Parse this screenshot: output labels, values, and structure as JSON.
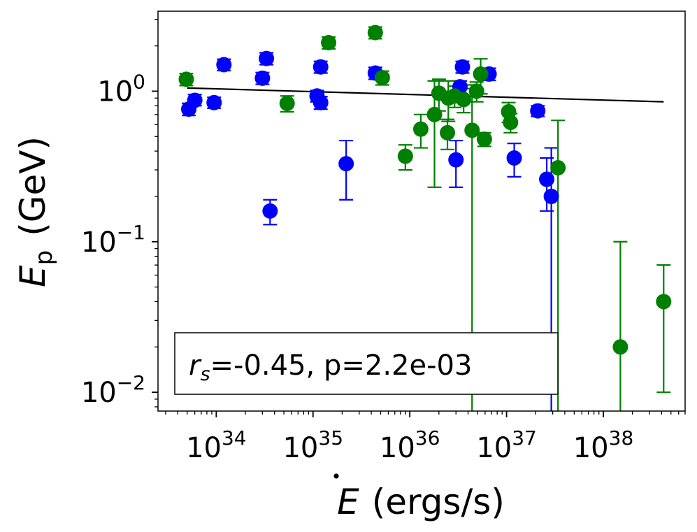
{
  "chart_data": {
    "type": "scatter",
    "x_scale": "log",
    "y_scale": "log",
    "xlim": [
      2.5e+33,
      7e+38
    ],
    "ylim": [
      0.0075,
      3.4
    ],
    "xlabel_symbol": "E",
    "xlabel_unit": "(ergs/s)",
    "ylabel_symbol": "E",
    "ylabel_subscript": "p",
    "ylabel_unit": "(GeV)",
    "x_ticks": [
      {
        "value": 1e+34,
        "base": "10",
        "exp": "34"
      },
      {
        "value": 1e+35,
        "base": "10",
        "exp": "35"
      },
      {
        "value": 1e+36,
        "base": "10",
        "exp": "36"
      },
      {
        "value": 1e+37,
        "base": "10",
        "exp": "37"
      },
      {
        "value": 1e+38,
        "base": "10",
        "exp": "38"
      }
    ],
    "y_ticks": [
      {
        "value": 1,
        "base": "10",
        "exp": "0"
      },
      {
        "value": 0.1,
        "base": "10",
        "exp": "−1"
      },
      {
        "value": 0.01,
        "base": "10",
        "exp": "−2"
      }
    ],
    "annotation": {
      "var": "r",
      "sub": "s",
      "text": "=-0.45, p=2.2e-03",
      "location": "lower-left"
    },
    "fit_line": {
      "x": [
        5e+33,
        4.2e+38
      ],
      "y": [
        1.05,
        0.85
      ],
      "color": "#000000"
    },
    "series": [
      {
        "name": "blue",
        "color": "#0000ff",
        "points": [
          {
            "x": 5.2e+33,
            "y": 0.76,
            "lo": 0.69,
            "hi": 0.83
          },
          {
            "x": 6e+33,
            "y": 0.87,
            "lo": 0.8,
            "hi": 0.95
          },
          {
            "x": 9.5e+33,
            "y": 0.84,
            "lo": 0.77,
            "hi": 0.91
          },
          {
            "x": 1.2e+34,
            "y": 1.5,
            "lo": 1.37,
            "hi": 1.63
          },
          {
            "x": 3e+34,
            "y": 1.22,
            "lo": 1.11,
            "hi": 1.33
          },
          {
            "x": 3.3e+34,
            "y": 1.65,
            "lo": 1.5,
            "hi": 1.8
          },
          {
            "x": 3.6e+34,
            "y": 0.16,
            "lo": 0.13,
            "hi": 0.19
          },
          {
            "x": 1.1e+35,
            "y": 0.93,
            "lo": 0.85,
            "hi": 1.01
          },
          {
            "x": 1.2e+35,
            "y": 0.84,
            "lo": 0.76,
            "hi": 0.92
          },
          {
            "x": 1.2e+35,
            "y": 1.45,
            "lo": 1.32,
            "hi": 1.58
          },
          {
            "x": 2.2e+35,
            "y": 0.33,
            "lo": 0.19,
            "hi": 0.47
          },
          {
            "x": 4.4e+35,
            "y": 1.32,
            "lo": 1.2,
            "hi": 1.44
          },
          {
            "x": 3e+36,
            "y": 0.35,
            "lo": 0.23,
            "hi": 0.47
          },
          {
            "x": 3.3e+36,
            "y": 1.07,
            "lo": 0.97,
            "hi": 1.17
          },
          {
            "x": 3.5e+36,
            "y": 1.45,
            "lo": 1.32,
            "hi": 1.58
          },
          {
            "x": 6.6e+36,
            "y": 1.3,
            "lo": 1.18,
            "hi": 1.42
          },
          {
            "x": 1.2e+37,
            "y": 0.36,
            "lo": 0.27,
            "hi": 0.45
          },
          {
            "x": 2.1e+37,
            "y": 0.74,
            "lo": 0.68,
            "hi": 0.8
          },
          {
            "x": 2.6e+37,
            "y": 0.26,
            "lo": 0.16,
            "hi": 0.36
          },
          {
            "x": 2.9e+37,
            "y": 0.2,
            "lo": 0.001,
            "hi": 0.42
          }
        ]
      },
      {
        "name": "green",
        "color": "#008000",
        "points": [
          {
            "x": 4.9e+33,
            "y": 1.2,
            "lo": 1.09,
            "hi": 1.31
          },
          {
            "x": 5.4e+34,
            "y": 0.83,
            "lo": 0.73,
            "hi": 0.93
          },
          {
            "x": 1.45e+35,
            "y": 2.1,
            "lo": 1.91,
            "hi": 2.29
          },
          {
            "x": 4.4e+35,
            "y": 2.45,
            "lo": 2.23,
            "hi": 2.67
          },
          {
            "x": 5.2e+35,
            "y": 1.23,
            "lo": 1.1,
            "hi": 1.36
          },
          {
            "x": 9e+35,
            "y": 0.37,
            "lo": 0.3,
            "hi": 0.44
          },
          {
            "x": 1.3e+36,
            "y": 0.56,
            "lo": 0.42,
            "hi": 0.7
          },
          {
            "x": 1.8e+36,
            "y": 0.7,
            "lo": 0.23,
            "hi": 1.17
          },
          {
            "x": 2e+36,
            "y": 0.97,
            "lo": 0.74,
            "hi": 1.2
          },
          {
            "x": 2.45e+36,
            "y": 0.53,
            "lo": 0.41,
            "hi": 0.65
          },
          {
            "x": 2.5e+36,
            "y": 0.9,
            "lo": 0.63,
            "hi": 1.17
          },
          {
            "x": 2.9e+36,
            "y": 0.93,
            "lo": 0.78,
            "hi": 1.08
          },
          {
            "x": 3.6e+36,
            "y": 0.88,
            "lo": 0.72,
            "hi": 1.04
          },
          {
            "x": 4.4e+36,
            "y": 0.55,
            "lo": 0.001,
            "hi": 1.1
          },
          {
            "x": 4.9e+36,
            "y": 1.0,
            "lo": 0.85,
            "hi": 1.15
          },
          {
            "x": 5.4e+36,
            "y": 1.3,
            "lo": 0.96,
            "hi": 1.64
          },
          {
            "x": 5.9e+36,
            "y": 0.48,
            "lo": 0.43,
            "hi": 0.53
          },
          {
            "x": 1.05e+37,
            "y": 0.73,
            "lo": 0.62,
            "hi": 0.84
          },
          {
            "x": 1.1e+37,
            "y": 0.62,
            "lo": 0.53,
            "hi": 0.71
          },
          {
            "x": 3.4e+37,
            "y": 0.31,
            "lo": 0.001,
            "hi": 0.64
          },
          {
            "x": 1.5e+38,
            "y": 0.02,
            "lo": 0.001,
            "hi": 0.1
          },
          {
            "x": 4.2e+38,
            "y": 0.04,
            "lo": 0.01,
            "hi": 0.07
          }
        ]
      }
    ]
  }
}
